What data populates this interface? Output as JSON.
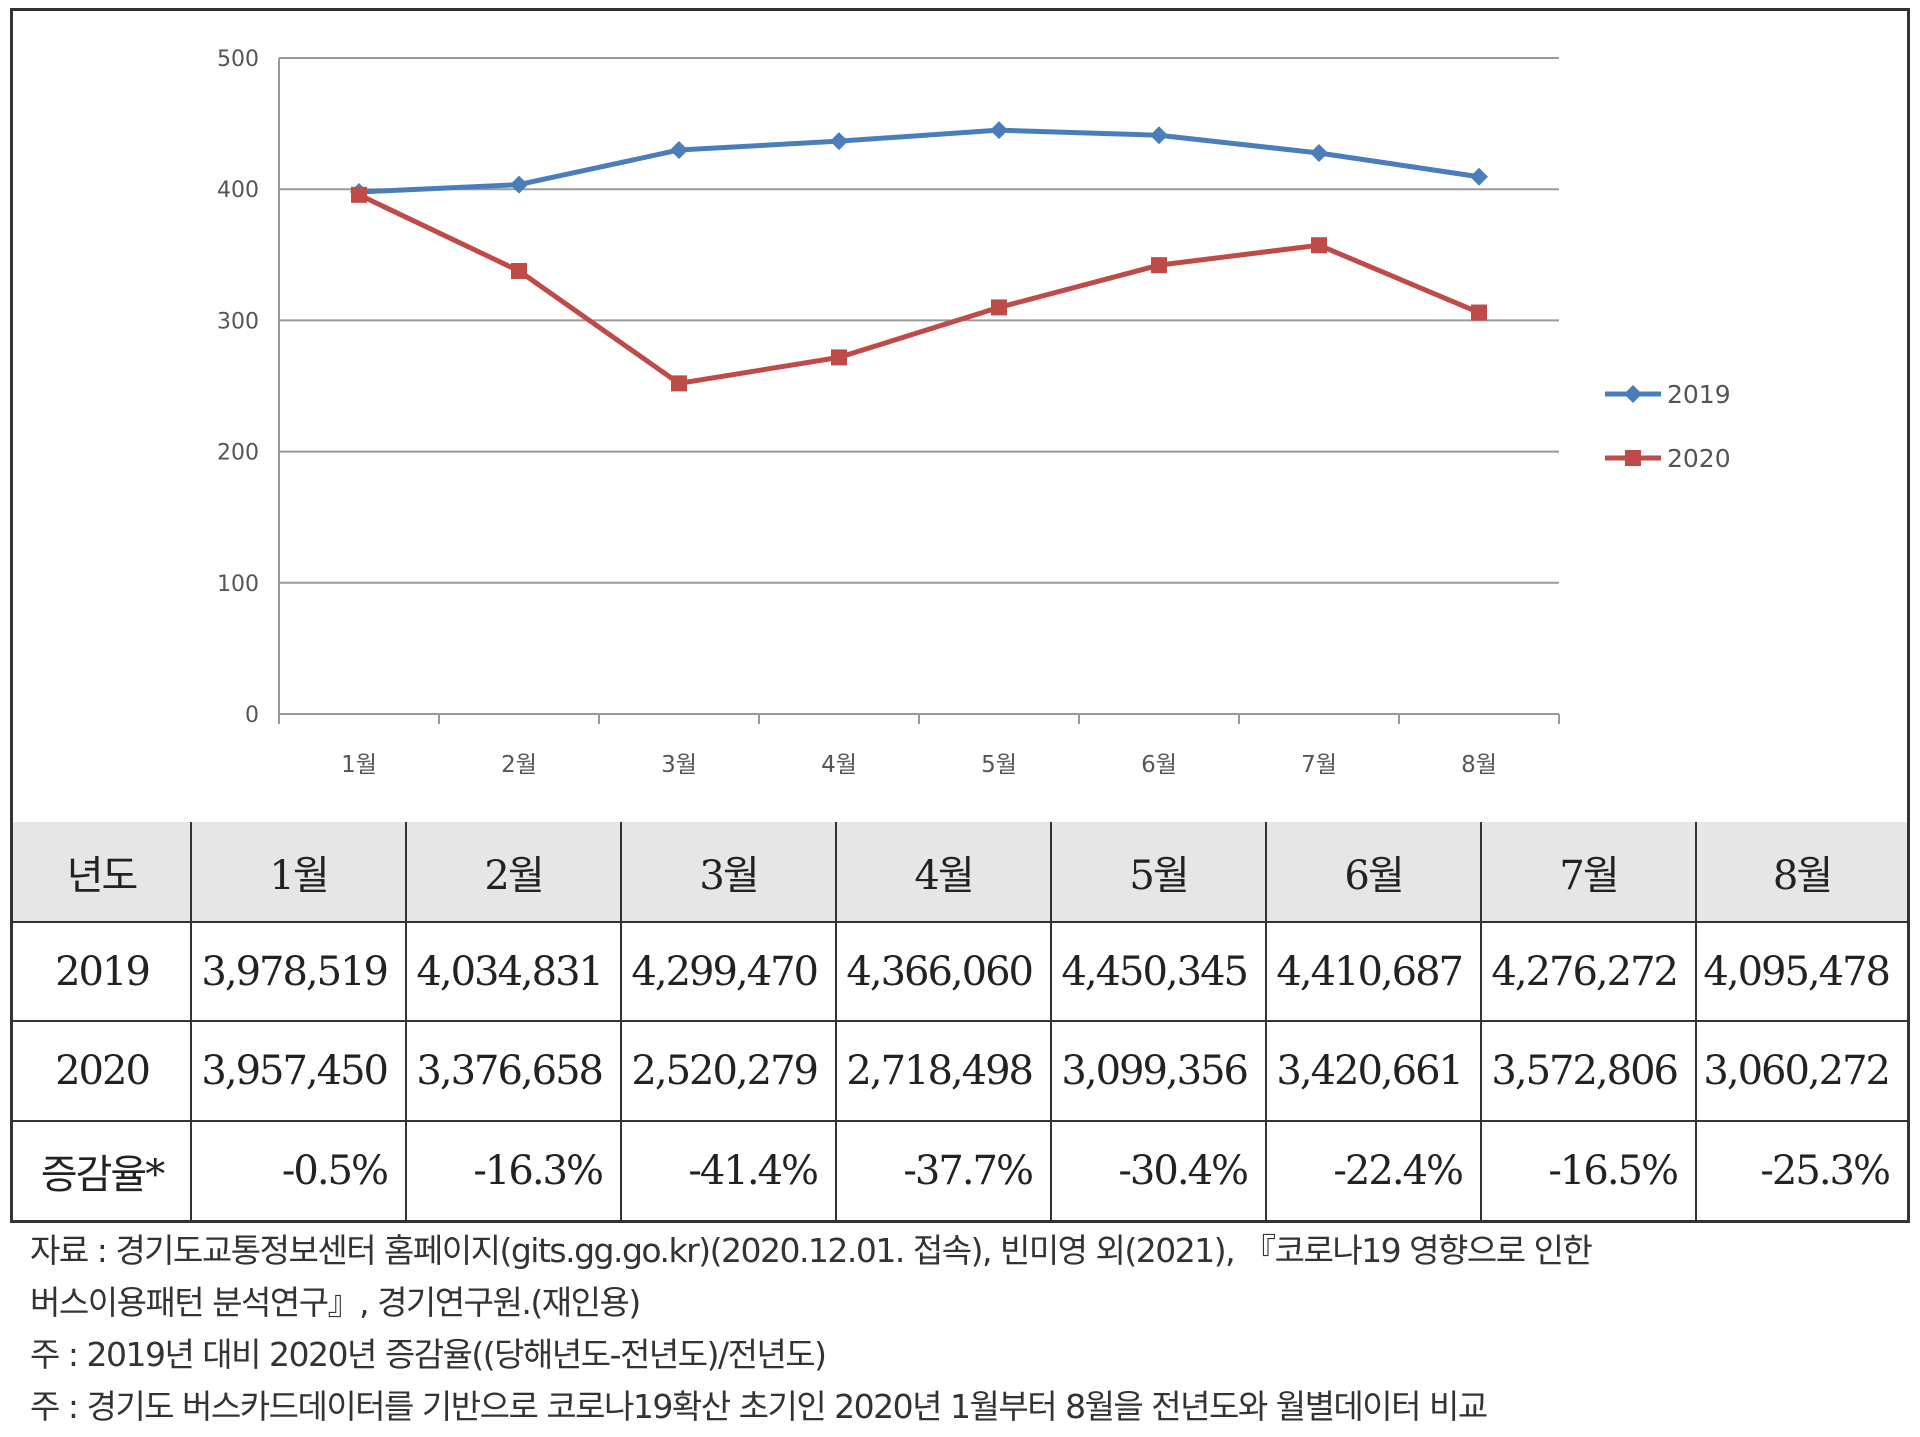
{
  "chart_data": {
    "type": "line",
    "categories": [
      "1월",
      "2월",
      "3월",
      "4월",
      "5월",
      "6월",
      "7월",
      "8월"
    ],
    "series": [
      {
        "name": "2019",
        "values": [
          397.9,
          403.5,
          429.9,
          436.6,
          445.0,
          441.1,
          427.6,
          409.5
        ],
        "color": "#4a7ebb",
        "marker": "diamond"
      },
      {
        "name": "2020",
        "values": [
          395.7,
          337.7,
          252.0,
          271.8,
          309.9,
          342.1,
          357.3,
          306.0
        ],
        "color": "#be4b48",
        "marker": "square"
      }
    ],
    "yticks": [
      "0",
      "100",
      "200",
      "300",
      "400",
      "500"
    ],
    "ylim": [
      0,
      500
    ],
    "grid": true,
    "legend": "right"
  },
  "table": {
    "header": [
      "년도",
      "1월",
      "2월",
      "3월",
      "4월",
      "5월",
      "6월",
      "7월",
      "8월"
    ],
    "rows": [
      [
        "2019",
        "3,978,519",
        "4,034,831",
        "4,299,470",
        "4,366,060",
        "4,450,345",
        "4,410,687",
        "4,276,272",
        "4,095,478"
      ],
      [
        "2020",
        "3,957,450",
        "3,376,658",
        "2,520,279",
        "2,718,498",
        "3,099,356",
        "3,420,661",
        "3,572,806",
        "3,060,272"
      ],
      [
        "증감율*",
        "-0.5%",
        "-16.3%",
        "-41.4%",
        "-37.7%",
        "-30.4%",
        "-22.4%",
        "-16.5%",
        "-25.3%"
      ]
    ]
  },
  "notes": {
    "line1": "자료 : 경기도교통정보센터 홈페이지(gits.gg.go.kr)(2020.12.01. 접속), 빈미영 외(2021), 『코로나19 영향으로 인한",
    "line2": "버스이용패턴 분석연구』, 경기연구원.(재인용)",
    "line3": "주 : 2019년 대비 2020년 증감율((당해년도-전년도)/전년도)",
    "line4": "주 : 경기도 버스카드데이터를 기반으로 코로나19확산 초기인 2020년 1월부터 8월을 전년도와 월별데이터 비교"
  }
}
